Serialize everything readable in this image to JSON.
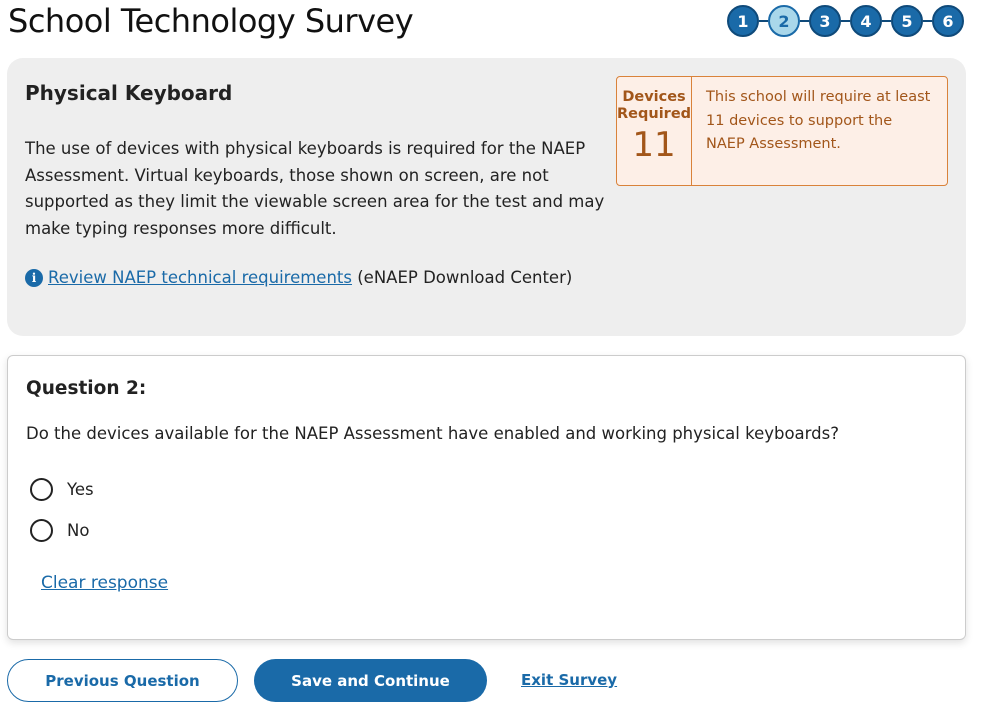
{
  "title": "School Technology Survey",
  "steps": [
    {
      "label": "1"
    },
    {
      "label": "2",
      "current": true
    },
    {
      "label": "3"
    },
    {
      "label": "4"
    },
    {
      "label": "5"
    },
    {
      "label": "6"
    }
  ],
  "info": {
    "heading": "Physical Keyboard",
    "body": "The use of devices with physical keyboards is required for the NAEP Assessment. Virtual keyboards, those shown on screen, are not supported as they limit the viewable screen area for the test and may make typing responses more difficult.",
    "link": "Review NAEP technical requirements",
    "link_suffix": " (eNAEP Download Center)",
    "info_icon": "i"
  },
  "devices": {
    "label": "Devices Required",
    "count": "11",
    "message": "This school will require at least 11 devices to support the NAEP Assessment."
  },
  "question": {
    "heading": "Question 2:",
    "text": "Do the devices available for the NAEP Assessment have enabled and working physical keyboards?",
    "options": [
      {
        "label": "Yes",
        "selected": false
      },
      {
        "label": "No",
        "selected": false
      }
    ],
    "clear": "Clear response"
  },
  "footer": {
    "previous": "Previous Question",
    "save": "Save and Continue",
    "exit": "Exit Survey"
  },
  "colors": {
    "primary": "#1a6aa8",
    "accent": "#a2561a"
  }
}
